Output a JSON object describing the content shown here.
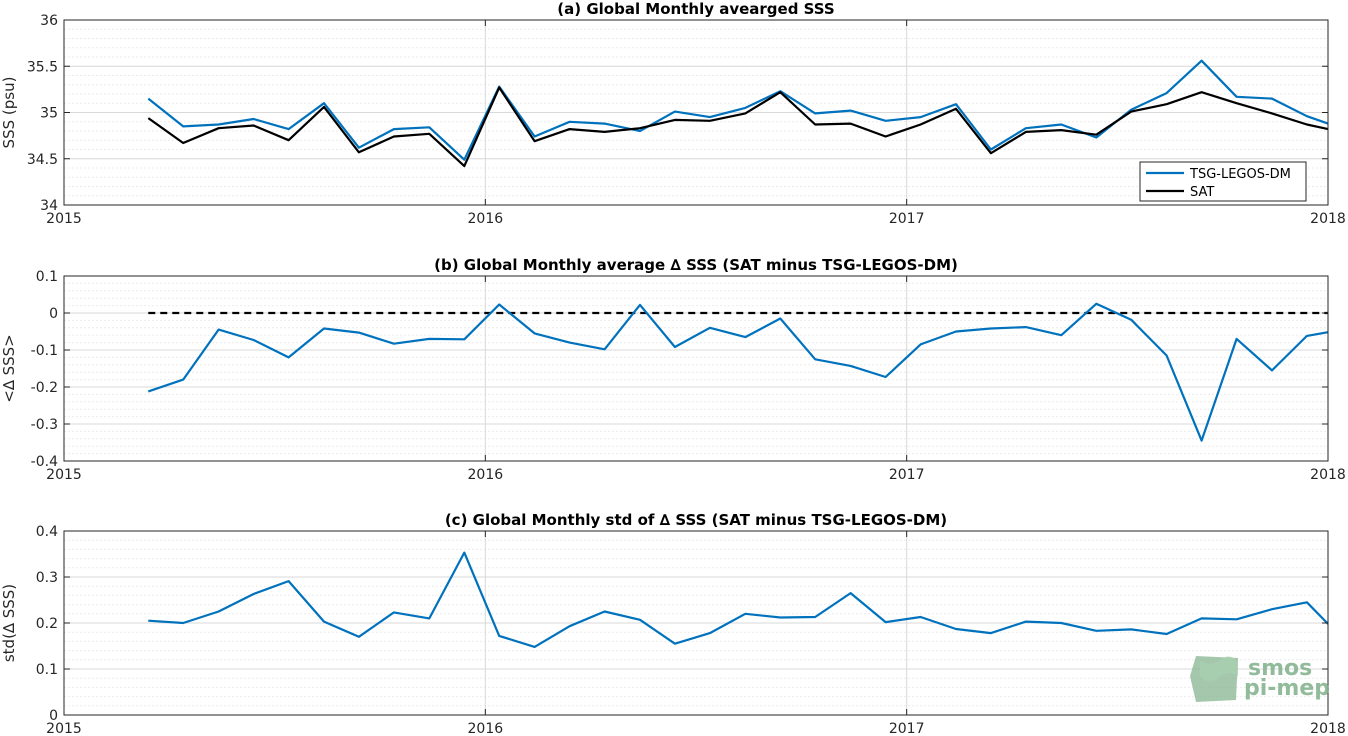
{
  "colors": {
    "series_blue": "#0072BD",
    "series_black": "#000000",
    "grid": "#d9d9d9",
    "axis": "#262626",
    "logo": "#7fb08a"
  },
  "logo": {
    "line1": "smos",
    "line2": "pi-mep"
  },
  "chart_data": [
    {
      "type": "line",
      "title": "(a) Global Monthly avearged SSS",
      "xlabel": "",
      "ylabel": "SSS (psu)",
      "xlim": [
        2015,
        2018
      ],
      "ylim": [
        34,
        36
      ],
      "xticks": [
        2015,
        2016,
        2017,
        2018
      ],
      "yticks": [
        34,
        34.5,
        35,
        35.5,
        36
      ],
      "ytick_labels": [
        "34",
        "34.5",
        "35",
        "35.5",
        "36"
      ],
      "grid": "on",
      "legend": "bottom-right",
      "x": [
        2015.2,
        2015.283,
        2015.367,
        2015.45,
        2015.533,
        2015.617,
        2015.7,
        2015.783,
        2015.867,
        2015.95,
        2016.033,
        2016.117,
        2016.2,
        2016.283,
        2016.367,
        2016.45,
        2016.533,
        2016.617,
        2016.7,
        2016.783,
        2016.867,
        2016.95,
        2017.033,
        2017.117,
        2017.2,
        2017.283,
        2017.367,
        2017.45,
        2017.533,
        2017.617,
        2017.7,
        2017.783,
        2017.867,
        2017.95,
        2018.0
      ],
      "series": [
        {
          "name": "TSG-LEGOS-DM",
          "color": "#0072BD",
          "values": [
            35.15,
            34.85,
            34.87,
            34.93,
            34.82,
            35.1,
            34.62,
            34.82,
            34.84,
            34.49,
            35.28,
            34.74,
            34.9,
            34.88,
            34.8,
            35.01,
            34.95,
            35.05,
            35.23,
            34.99,
            35.02,
            34.91,
            34.95,
            35.09,
            34.6,
            34.83,
            34.87,
            34.73,
            35.03,
            35.21,
            35.56,
            35.17,
            35.15,
            34.96,
            34.88
          ]
        },
        {
          "name": "SAT",
          "color": "#000000",
          "values": [
            34.94,
            34.67,
            34.83,
            34.86,
            34.7,
            35.06,
            34.57,
            34.74,
            34.77,
            34.42,
            35.27,
            34.69,
            34.82,
            34.79,
            34.83,
            34.92,
            34.91,
            34.99,
            35.22,
            34.87,
            34.88,
            34.74,
            34.87,
            35.04,
            34.56,
            34.79,
            34.81,
            34.76,
            35.01,
            35.09,
            35.22,
            35.1,
            34.99,
            34.87,
            34.82
          ]
        }
      ]
    },
    {
      "type": "line",
      "title": "(b) Global Monthly average ∆ SSS (SAT minus TSG-LEGOS-DM)",
      "xlabel": "",
      "ylabel": "<∆ SSS>",
      "xlim": [
        2015,
        2018
      ],
      "ylim": [
        -0.4,
        0.1
      ],
      "xticks": [
        2015,
        2016,
        2017,
        2018
      ],
      "yticks": [
        -0.4,
        -0.3,
        -0.2,
        -0.1,
        0,
        0.1
      ],
      "ytick_labels": [
        "-0.4",
        "-0.3",
        "-0.2",
        "-0.1",
        "0",
        "0.1"
      ],
      "grid": "on",
      "reference_line": 0,
      "x": [
        2015.2,
        2015.283,
        2015.367,
        2015.45,
        2015.533,
        2015.617,
        2015.7,
        2015.783,
        2015.867,
        2015.95,
        2016.033,
        2016.117,
        2016.2,
        2016.283,
        2016.367,
        2016.45,
        2016.533,
        2016.617,
        2016.7,
        2016.783,
        2016.867,
        2016.95,
        2017.033,
        2017.117,
        2017.2,
        2017.283,
        2017.367,
        2017.45,
        2017.533,
        2017.617,
        2017.7,
        2017.783,
        2017.867,
        2017.95,
        2018.0
      ],
      "series": [
        {
          "color": "#0072BD",
          "values": [
            -0.212,
            -0.18,
            -0.045,
            -0.073,
            -0.12,
            -0.042,
            -0.053,
            -0.083,
            -0.07,
            -0.071,
            0.023,
            -0.055,
            -0.08,
            -0.098,
            0.022,
            -0.092,
            -0.04,
            -0.065,
            -0.015,
            -0.125,
            -0.143,
            -0.173,
            -0.085,
            -0.05,
            -0.042,
            -0.038,
            -0.06,
            0.025,
            -0.018,
            -0.115,
            -0.345,
            -0.07,
            -0.155,
            -0.062,
            -0.052
          ]
        }
      ]
    },
    {
      "type": "line",
      "title": "(c) Global Monthly std of ∆ SSS (SAT minus TSG-LEGOS-DM)",
      "xlabel": "",
      "ylabel": "std(∆ SSS)",
      "xlim": [
        2015,
        2018
      ],
      "ylim": [
        0,
        0.4
      ],
      "xticks": [
        2015,
        2016,
        2017,
        2018
      ],
      "yticks": [
        0,
        0.1,
        0.2,
        0.3,
        0.4
      ],
      "ytick_labels": [
        "0",
        "0.1",
        "0.2",
        "0.3",
        "0.4"
      ],
      "grid": "on",
      "x": [
        2015.2,
        2015.283,
        2015.367,
        2015.45,
        2015.533,
        2015.617,
        2015.7,
        2015.783,
        2015.867,
        2015.95,
        2016.033,
        2016.117,
        2016.2,
        2016.283,
        2016.367,
        2016.45,
        2016.533,
        2016.617,
        2016.7,
        2016.783,
        2016.867,
        2016.95,
        2017.033,
        2017.117,
        2017.2,
        2017.283,
        2017.367,
        2017.45,
        2017.533,
        2017.617,
        2017.7,
        2017.783,
        2017.867,
        2017.95,
        2018.0
      ],
      "series": [
        {
          "color": "#0072BD",
          "values": [
            0.205,
            0.2,
            0.225,
            0.263,
            0.291,
            0.203,
            0.17,
            0.223,
            0.21,
            0.353,
            0.172,
            0.148,
            0.193,
            0.225,
            0.207,
            0.155,
            0.178,
            0.22,
            0.212,
            0.213,
            0.265,
            0.202,
            0.213,
            0.187,
            0.178,
            0.203,
            0.2,
            0.183,
            0.186,
            0.176,
            0.21,
            0.208,
            0.23,
            0.245,
            0.198
          ]
        }
      ]
    }
  ]
}
